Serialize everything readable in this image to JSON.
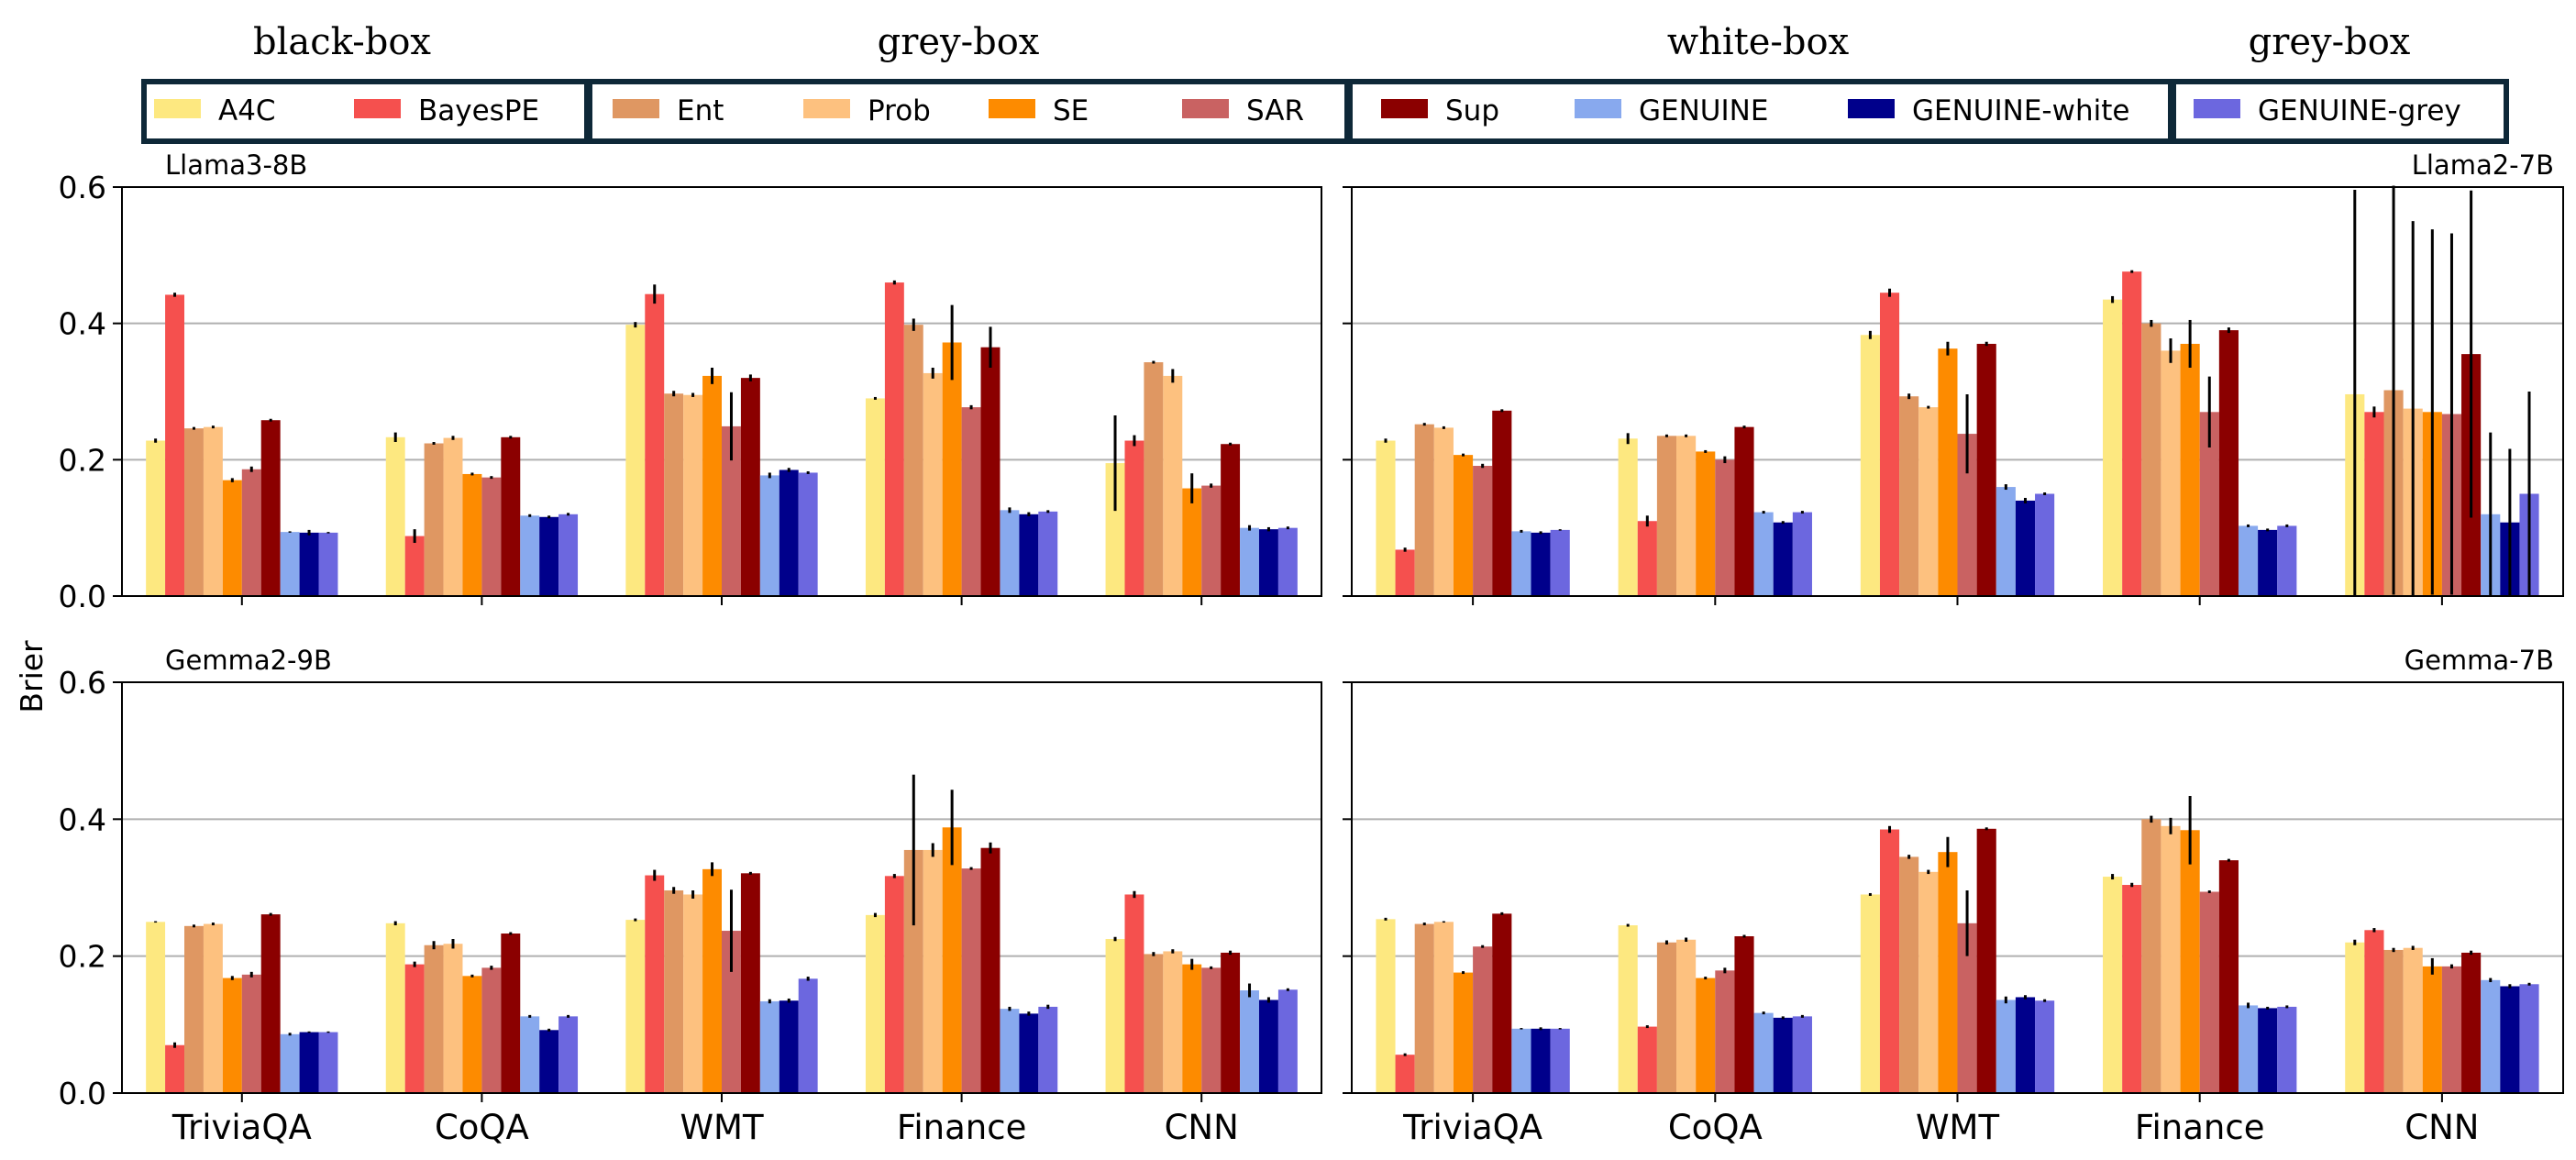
{
  "group_headers": [
    "black-box",
    "grey-box",
    "white-box",
    "grey-box"
  ],
  "chart_data": {
    "type": "bar",
    "ylabel": "Brier",
    "ylim": [
      0,
      0.6
    ],
    "yticks": [
      "0.0",
      "0.2",
      "0.4",
      "0.6"
    ],
    "grid": "horizontal",
    "categories": [
      "TriviaQA",
      "CoQA",
      "WMT",
      "Finance",
      "CNN"
    ],
    "methods": [
      {
        "name": "A4C",
        "color": "#fde880",
        "group": 0
      },
      {
        "name": "BayesPE",
        "color": "#f5504e",
        "group": 0
      },
      {
        "name": "Ent",
        "color": "#df9762",
        "group": 1
      },
      {
        "name": "Prob",
        "color": "#fdc17f",
        "group": 1
      },
      {
        "name": "SE",
        "color": "#fd8b00",
        "group": 1
      },
      {
        "name": "SAR",
        "color": "#c96262",
        "group": 1
      },
      {
        "name": "Sup",
        "color": "#8b0000",
        "group": 2
      },
      {
        "name": "GENUINE",
        "color": "#88a9ee",
        "group": 2
      },
      {
        "name": "GENUINE-white",
        "color": "#00008b",
        "group": 2
      },
      {
        "name": "GENUINE-grey",
        "color": "#6c67df",
        "group": 3
      }
    ],
    "panels": [
      {
        "title": "Llama3-8B",
        "title_pos": "left",
        "series": [
          {
            "name": "A4C",
            "values": [
              0.228,
              0.233,
              0.398,
              0.29,
              0.195
            ],
            "errors": [
              0.003,
              0.007,
              0.004,
              0.002,
              0.07
            ]
          },
          {
            "name": "BayesPE",
            "values": [
              0.442,
              0.088,
              0.443,
              0.46,
              0.228
            ],
            "errors": [
              0.003,
              0.01,
              0.014,
              0.003,
              0.008
            ]
          },
          {
            "name": "Ent",
            "values": [
              0.246,
              0.224,
              0.297,
              0.398,
              0.343
            ],
            "errors": [
              0.002,
              0.002,
              0.004,
              0.009,
              0.002
            ]
          },
          {
            "name": "Prob",
            "values": [
              0.248,
              0.232,
              0.295,
              0.327,
              0.323
            ],
            "errors": [
              0.002,
              0.003,
              0.003,
              0.008,
              0.01
            ]
          },
          {
            "name": "SE",
            "values": [
              0.17,
              0.179,
              0.323,
              0.372,
              0.158
            ],
            "errors": [
              0.003,
              0.002,
              0.012,
              0.055,
              0.022
            ]
          },
          {
            "name": "SAR",
            "values": [
              0.186,
              0.174,
              0.249,
              0.277,
              0.162
            ],
            "errors": [
              0.004,
              0.002,
              0.05,
              0.003,
              0.003
            ]
          },
          {
            "name": "Sup",
            "values": [
              0.258,
              0.233,
              0.32,
              0.365,
              0.223
            ],
            "errors": [
              0.002,
              0.002,
              0.005,
              0.03,
              0.002
            ]
          },
          {
            "name": "GENUINE",
            "values": [
              0.094,
              0.118,
              0.177,
              0.126,
              0.1
            ],
            "errors": [
              0.001,
              0.002,
              0.004,
              0.004,
              0.004
            ]
          },
          {
            "name": "GENUINE-white",
            "values": [
              0.093,
              0.116,
              0.185,
              0.12,
              0.098
            ],
            "errors": [
              0.004,
              0.002,
              0.003,
              0.003,
              0.003
            ]
          },
          {
            "name": "GENUINE-grey",
            "values": [
              0.093,
              0.12,
              0.181,
              0.124,
              0.1
            ],
            "errors": [
              0.001,
              0.002,
              0.002,
              0.002,
              0.002
            ]
          }
        ]
      },
      {
        "title": "Llama2-7B",
        "title_pos": "right",
        "series": [
          {
            "name": "A4C",
            "values": [
              0.228,
              0.231,
              0.383,
              0.435,
              0.296
            ],
            "errors": [
              0.003,
              0.008,
              0.006,
              0.005,
              0.3
            ]
          },
          {
            "name": "BayesPE",
            "values": [
              0.068,
              0.11,
              0.445,
              0.476,
              0.27
            ],
            "errors": [
              0.003,
              0.008,
              0.006,
              0.002,
              0.008
            ]
          },
          {
            "name": "Ent",
            "values": [
              0.252,
              0.235,
              0.293,
              0.4,
              0.302
            ],
            "errors": [
              0.002,
              0.002,
              0.004,
              0.005,
              0.3
            ]
          },
          {
            "name": "Prob",
            "values": [
              0.247,
              0.235,
              0.277,
              0.36,
              0.275
            ],
            "errors": [
              0.002,
              0.002,
              0.002,
              0.018,
              0.275
            ]
          },
          {
            "name": "SE",
            "values": [
              0.207,
              0.212,
              0.363,
              0.37,
              0.27
            ],
            "errors": [
              0.002,
              0.002,
              0.01,
              0.035,
              0.268
            ]
          },
          {
            "name": "SAR",
            "values": [
              0.191,
              0.2,
              0.238,
              0.27,
              0.267
            ],
            "errors": [
              0.003,
              0.005,
              0.058,
              0.052,
              0.265
            ]
          },
          {
            "name": "Sup",
            "values": [
              0.272,
              0.248,
              0.37,
              0.39,
              0.355
            ],
            "errors": [
              0.002,
              0.002,
              0.003,
              0.004,
              0.24
            ]
          },
          {
            "name": "GENUINE",
            "values": [
              0.095,
              0.123,
              0.16,
              0.103,
              0.12
            ],
            "errors": [
              0.002,
              0.002,
              0.004,
              0.002,
              0.12
            ]
          },
          {
            "name": "GENUINE-white",
            "values": [
              0.093,
              0.108,
              0.14,
              0.097,
              0.108
            ],
            "errors": [
              0.002,
              0.002,
              0.004,
              0.002,
              0.108
            ]
          },
          {
            "name": "GENUINE-grey",
            "values": [
              0.097,
              0.123,
              0.15,
              0.103,
              0.15
            ],
            "errors": [
              0.001,
              0.002,
              0.002,
              0.002,
              0.15
            ]
          }
        ]
      },
      {
        "title": "Gemma2-9B",
        "title_pos": "left",
        "series": [
          {
            "name": "A4C",
            "values": [
              0.25,
              0.248,
              0.253,
              0.26,
              0.225
            ],
            "errors": [
              0.001,
              0.003,
              0.002,
              0.003,
              0.003
            ]
          },
          {
            "name": "BayesPE",
            "values": [
              0.07,
              0.188,
              0.318,
              0.317,
              0.29
            ],
            "errors": [
              0.004,
              0.004,
              0.008,
              0.003,
              0.005
            ]
          },
          {
            "name": "Ent",
            "values": [
              0.244,
              0.216,
              0.296,
              0.355,
              0.203
            ],
            "errors": [
              0.002,
              0.006,
              0.005,
              0.11,
              0.003
            ]
          },
          {
            "name": "Prob",
            "values": [
              0.247,
              0.218,
              0.29,
              0.355,
              0.207
            ],
            "errors": [
              0.002,
              0.007,
              0.006,
              0.01,
              0.003
            ]
          },
          {
            "name": "SE",
            "values": [
              0.168,
              0.171,
              0.327,
              0.388,
              0.188
            ],
            "errors": [
              0.003,
              0.002,
              0.01,
              0.055,
              0.008
            ]
          },
          {
            "name": "SAR",
            "values": [
              0.173,
              0.183,
              0.237,
              0.328,
              0.183
            ],
            "errors": [
              0.004,
              0.003,
              0.06,
              0.002,
              0.002
            ]
          },
          {
            "name": "Sup",
            "values": [
              0.261,
              0.233,
              0.321,
              0.358,
              0.205
            ],
            "errors": [
              0.002,
              0.002,
              0.002,
              0.008,
              0.003
            ]
          },
          {
            "name": "GENUINE",
            "values": [
              0.086,
              0.112,
              0.134,
              0.123,
              0.15
            ],
            "errors": [
              0.002,
              0.002,
              0.003,
              0.003,
              0.01
            ]
          },
          {
            "name": "GENUINE-white",
            "values": [
              0.089,
              0.092,
              0.135,
              0.116,
              0.136
            ],
            "errors": [
              0.001,
              0.002,
              0.003,
              0.003,
              0.004
            ]
          },
          {
            "name": "GENUINE-grey",
            "values": [
              0.089,
              0.112,
              0.167,
              0.126,
              0.151
            ],
            "errors": [
              0.001,
              0.002,
              0.003,
              0.003,
              0.002
            ]
          }
        ]
      },
      {
        "title": "Gemma-7B",
        "title_pos": "right",
        "series": [
          {
            "name": "A4C",
            "values": [
              0.254,
              0.245,
              0.29,
              0.316,
              0.22
            ],
            "errors": [
              0.002,
              0.002,
              0.002,
              0.004,
              0.004
            ]
          },
          {
            "name": "BayesPE",
            "values": [
              0.056,
              0.097,
              0.385,
              0.304,
              0.238
            ],
            "errors": [
              0.002,
              0.002,
              0.005,
              0.003,
              0.003
            ]
          },
          {
            "name": "Ent",
            "values": [
              0.247,
              0.22,
              0.345,
              0.4,
              0.209
            ],
            "errors": [
              0.002,
              0.003,
              0.003,
              0.005,
              0.003
            ]
          },
          {
            "name": "Prob",
            "values": [
              0.25,
              0.224,
              0.323,
              0.39,
              0.212
            ],
            "errors": [
              0.001,
              0.003,
              0.003,
              0.012,
              0.003
            ]
          },
          {
            "name": "SE",
            "values": [
              0.176,
              0.168,
              0.352,
              0.384,
              0.185
            ],
            "errors": [
              0.002,
              0.002,
              0.022,
              0.05,
              0.012
            ]
          },
          {
            "name": "SAR",
            "values": [
              0.214,
              0.179,
              0.248,
              0.294,
              0.185
            ],
            "errors": [
              0.002,
              0.004,
              0.048,
              0.002,
              0.003
            ]
          },
          {
            "name": "Sup",
            "values": [
              0.262,
              0.229,
              0.386,
              0.34,
              0.205
            ],
            "errors": [
              0.002,
              0.002,
              0.002,
              0.002,
              0.003
            ]
          },
          {
            "name": "GENUINE",
            "values": [
              0.094,
              0.117,
              0.136,
              0.128,
              0.165
            ],
            "errors": [
              0.001,
              0.002,
              0.005,
              0.004,
              0.003
            ]
          },
          {
            "name": "GENUINE-white",
            "values": [
              0.094,
              0.11,
              0.14,
              0.124,
              0.156
            ],
            "errors": [
              0.002,
              0.002,
              0.003,
              0.002,
              0.003
            ]
          },
          {
            "name": "GENUINE-grey",
            "values": [
              0.094,
              0.112,
              0.135,
              0.126,
              0.159
            ],
            "errors": [
              0.001,
              0.002,
              0.002,
              0.002,
              0.002
            ]
          }
        ]
      }
    ]
  }
}
